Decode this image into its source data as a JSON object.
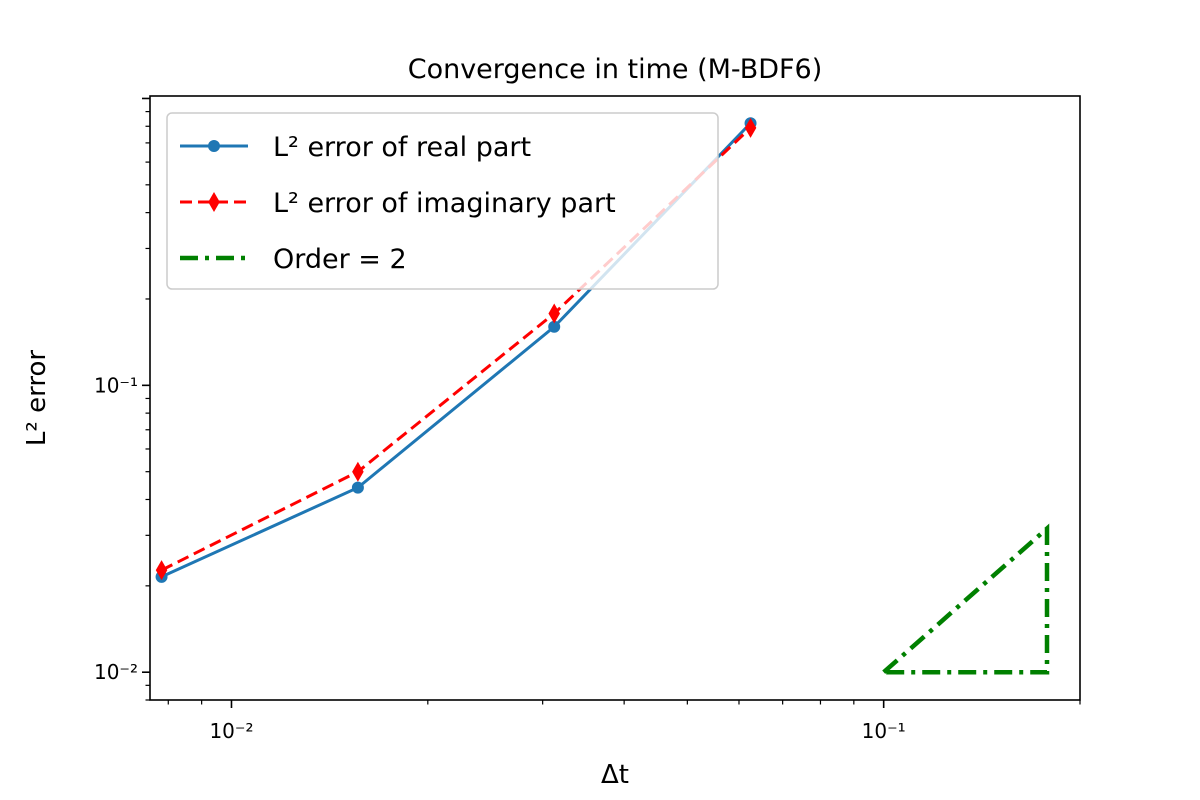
{
  "chart_data": {
    "type": "line",
    "title": "Convergence in time (M-BDF6)",
    "xlabel": "Δt",
    "ylabel": "L² error",
    "xscale": "log",
    "yscale": "log",
    "xlim": [
      0.0075,
      0.2
    ],
    "ylim": [
      0.008,
      1.02
    ],
    "x_major_ticks": [
      0.01,
      0.1
    ],
    "x_major_tick_labels": [
      "10⁻²",
      "10⁻¹"
    ],
    "y_major_ticks": [
      0.01,
      0.1
    ],
    "y_major_tick_labels": [
      "10⁻²",
      "10⁻¹"
    ],
    "grid": false,
    "legend_position": "upper-left",
    "series": [
      {
        "name": "L² error of real part",
        "color": "#1f77b4",
        "linestyle": "solid",
        "marker": "circle",
        "x": [
          0.0078125,
          0.015625,
          0.03125,
          0.0625
        ],
        "y": [
          0.0215,
          0.044,
          0.16,
          0.82
        ]
      },
      {
        "name": "L² error of imaginary part",
        "color": "#ff0000",
        "linestyle": "dashed",
        "marker": "thin-diamond",
        "x": [
          0.0078125,
          0.015625,
          0.03125,
          0.0625
        ],
        "y": [
          0.0227,
          0.05,
          0.178,
          0.79
        ]
      },
      {
        "name": "Order = 2",
        "color": "#008000",
        "linestyle": "dashdot",
        "marker": "none",
        "x": [
          0.1,
          0.178,
          0.178,
          0.1
        ],
        "y": [
          0.01,
          0.0317,
          0.01,
          0.01
        ]
      }
    ]
  }
}
